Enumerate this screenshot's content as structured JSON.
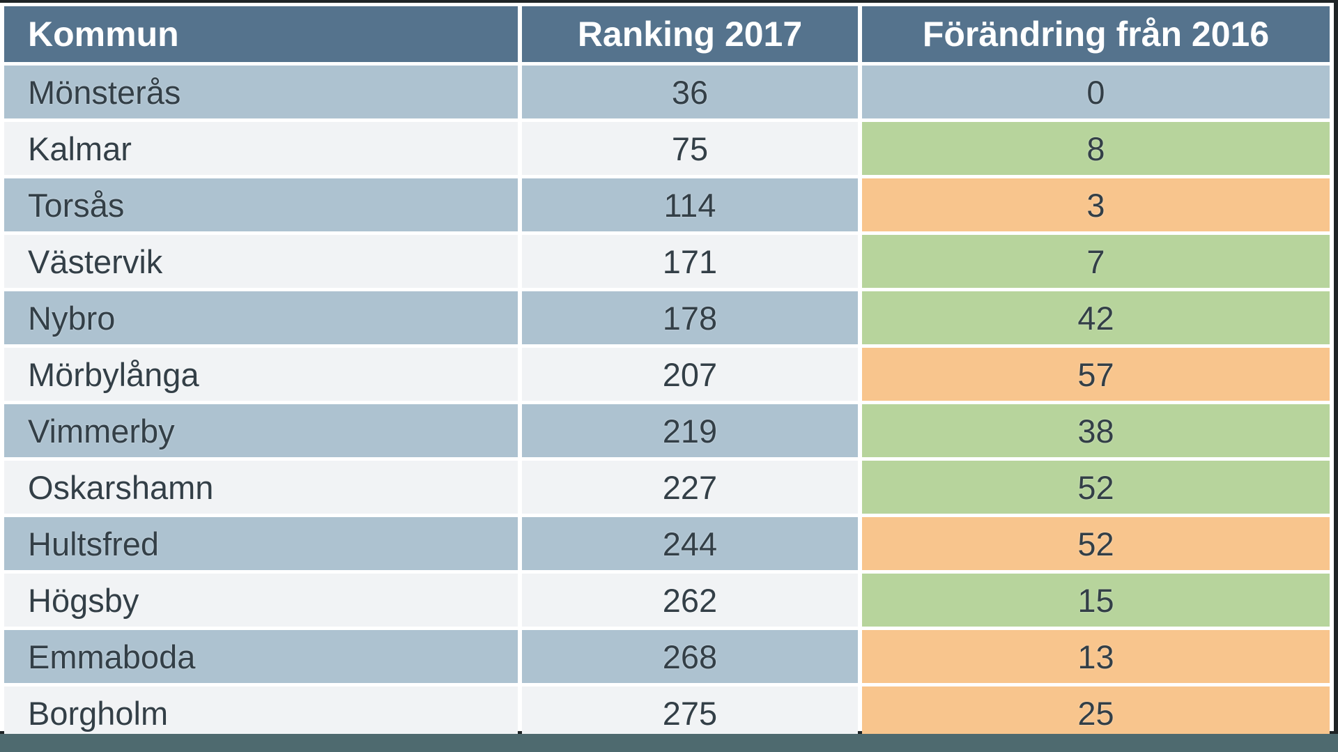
{
  "chart_data": {
    "type": "table",
    "columns": [
      "Kommun",
      "Ranking 2017",
      "Förändring från 2016"
    ],
    "rows": [
      [
        "Mönsterås",
        36,
        0
      ],
      [
        "Kalmar",
        75,
        8
      ],
      [
        "Torsås",
        114,
        3
      ],
      [
        "Västervik",
        171,
        7
      ],
      [
        "Nybro",
        178,
        42
      ],
      [
        "Mörbylånga",
        207,
        57
      ],
      [
        "Vimmerby",
        219,
        38
      ],
      [
        "Oskarshamn",
        227,
        52
      ],
      [
        "Hultsfred",
        244,
        52
      ],
      [
        "Högsby",
        262,
        15
      ],
      [
        "Emmaboda",
        268,
        13
      ],
      [
        "Borgholm",
        275,
        25
      ]
    ],
    "change_cell_colors": [
      "base",
      "green",
      "orange",
      "green",
      "green",
      "orange",
      "green",
      "green",
      "orange",
      "green",
      "orange",
      "orange"
    ],
    "layout_hints": {
      "row_striping": [
        "blue",
        "light"
      ],
      "grid": "white gaps between cells",
      "legend_position": "none"
    }
  },
  "colors": {
    "header_bg": "#55738d",
    "header_text": "#ffffff",
    "row_blue": "#adc2d0",
    "row_light": "#f1f3f5",
    "change_green": "#b7d49c",
    "change_orange": "#f8c58d",
    "bottom_bar": "#4e6a6f",
    "frame_border": "#1f2426",
    "cell_text": "#333f47"
  }
}
